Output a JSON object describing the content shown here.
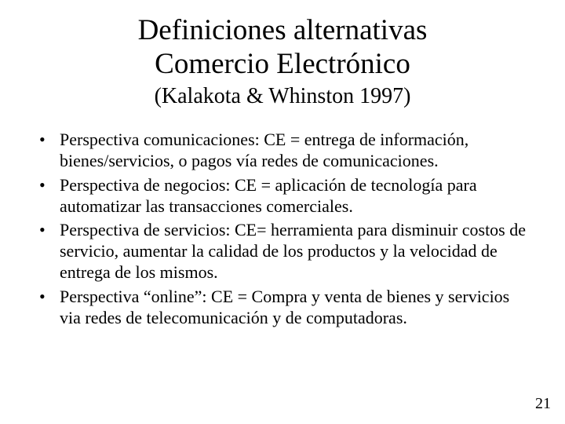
{
  "title_line1": "Definiciones alternativas",
  "title_line2": "Comercio Electrónico",
  "subtitle": "(Kalakota & Whinston 1997)",
  "bullets": [
    "Perspectiva comunicaciones: CE = entrega de información, bienes/servicios, o pagos vía redes de comunicaciones.",
    "Perspectiva de negocios: CE = aplicación de tecnología para automatizar las transacciones comerciales.",
    "Perspectiva de servicios: CE= herramienta para disminuir costos de servicio, aumentar la calidad de los productos y la velocidad de entrega de los mismos.",
    "Perspectiva “online”: CE = Compra y venta de bienes y servicios via redes de telecomunicación y de computadoras."
  ],
  "page_number": "21",
  "colors": {
    "background": "#ffffff",
    "text": "#000000"
  },
  "typography": {
    "family": "Times New Roman",
    "title_size_pt": 37,
    "subtitle_size_pt": 28,
    "body_size_pt": 22,
    "pagenum_size_pt": 20
  }
}
